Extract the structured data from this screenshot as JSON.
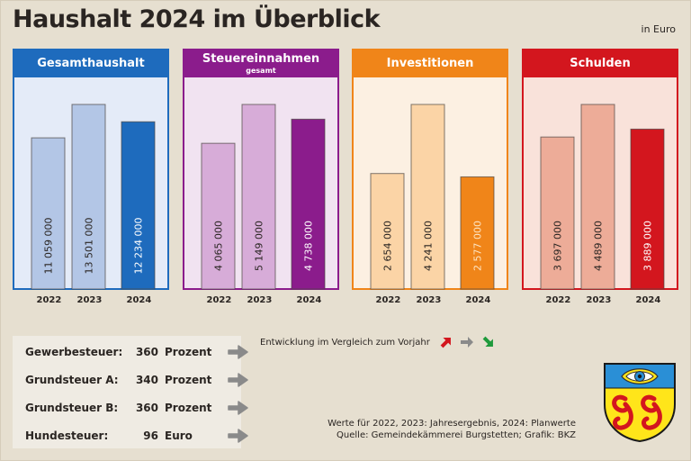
{
  "title": "Haushalt 2024 im Überblick",
  "unit_note": "in Euro",
  "chart_data": [
    {
      "type": "bar",
      "title": "Gesamthaushalt",
      "subtitle": "",
      "categories": [
        "2022",
        "2023",
        "2024"
      ],
      "values": [
        11059000,
        13501000,
        12234000
      ],
      "value_labels": [
        "11 059 000",
        "13 501 000",
        "12 234 000"
      ],
      "colors": {
        "header": "#1e6bbd",
        "panel_bg": "#e4ebf8",
        "bar_prev": "#b3c6e6",
        "bar_current": "#1e6bbd",
        "label_current": "#ffffff"
      }
    },
    {
      "type": "bar",
      "title": "Steuereinnahmen",
      "subtitle": "gesamt",
      "categories": [
        "2022",
        "2023",
        "2024"
      ],
      "values": [
        4065000,
        5149000,
        4738000
      ],
      "value_labels": [
        "4 065 000",
        "5 149 000",
        "4 738 000"
      ],
      "colors": {
        "header": "#8b1c8c",
        "panel_bg": "#f1e3f1",
        "bar_prev": "#d7acd8",
        "bar_current": "#8b1c8c",
        "label_current": "#ffffff"
      }
    },
    {
      "type": "bar",
      "title": "Investitionen",
      "subtitle": "",
      "categories": [
        "2022",
        "2023",
        "2024"
      ],
      "values": [
        2654000,
        4241000,
        2577000
      ],
      "value_labels": [
        "2 654 000",
        "4 241 000",
        "2 577 000"
      ],
      "colors": {
        "header": "#f08519",
        "panel_bg": "#fcf0e2",
        "bar_prev": "#fbd4a6",
        "bar_current": "#f08519",
        "label_current": "#fde5c4"
      }
    },
    {
      "type": "bar",
      "title": "Schulden",
      "subtitle": "",
      "categories": [
        "2022",
        "2023",
        "2024"
      ],
      "values": [
        3697000,
        4489000,
        3889000
      ],
      "value_labels": [
        "3 697 000",
        "4 489 000",
        "3 889 000"
      ],
      "colors": {
        "header": "#d3161e",
        "panel_bg": "#f9e2da",
        "bar_prev": "#edac98",
        "bar_current": "#d3161e",
        "label_current": "#ffffff"
      }
    }
  ],
  "taxes": [
    {
      "label": "Gewerbesteuer:",
      "value": "360",
      "unit": "Prozent",
      "trend": "unchanged"
    },
    {
      "label": "Grundsteuer A:",
      "value": "340",
      "unit": "Prozent",
      "trend": "unchanged"
    },
    {
      "label": "Grundsteuer B:",
      "value": "360",
      "unit": "Prozent",
      "trend": "unchanged"
    },
    {
      "label": "Hundesteuer:",
      "value": "96",
      "unit": "Euro",
      "trend": "unchanged"
    }
  ],
  "legend": {
    "text": "Entwicklung im Vergleich zum Vorjahr",
    "arrows": [
      {
        "icon": "arrow-up-right-icon",
        "color": "#d3161e"
      },
      {
        "icon": "arrow-right-icon",
        "color": "#8a8a8a"
      },
      {
        "icon": "arrow-down-right-icon",
        "color": "#1f9a3c"
      }
    ]
  },
  "footnotes": [
    "Werte für 2022, 2023: Jahresergebnis, 2024: Planwerte",
    "Quelle: Gemeindekämmerei Burgstetten; Grafik: BKZ"
  ],
  "crest": {
    "icon": "coat-of-arms-icon",
    "top_color": "#2a8fd6",
    "bottom_color": "#ffe51a",
    "figure_color": "#d3161e"
  }
}
